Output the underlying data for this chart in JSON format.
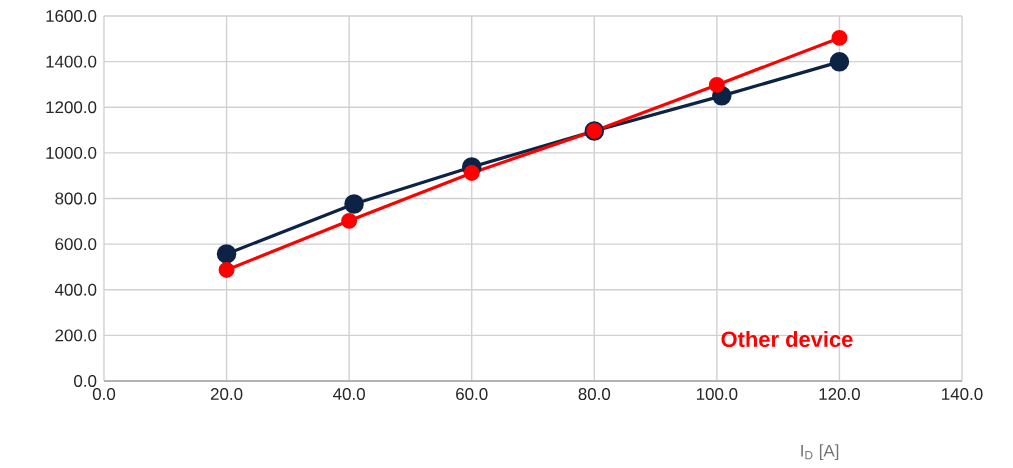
{
  "chart_data": {
    "type": "line",
    "xlabel": "I$_{D}$ [A]",
    "series": [
      {
        "color": "#0d2345",
        "x": [
          20,
          40.8,
          60,
          80,
          100.8,
          120
        ],
        "values": [
          557,
          776,
          938,
          1096,
          1250,
          1399
        ]
      },
      {
        "name": "Other device",
        "color": "#ff0000",
        "x": [
          20,
          40,
          60,
          80,
          100,
          120
        ],
        "values": [
          487,
          702,
          912,
          1096,
          1298,
          1504
        ]
      }
    ],
    "xlim": [
      0,
      140
    ],
    "ylim": [
      0,
      1600
    ],
    "xticks": [
      {
        "value": 0,
        "label": "0.0"
      },
      {
        "value": 20,
        "label": "20.0"
      },
      {
        "value": 40,
        "label": "40.0"
      },
      {
        "value": 60,
        "label": "60.0"
      },
      {
        "value": 80,
        "label": "80.0"
      },
      {
        "value": 100,
        "label": "100.0"
      },
      {
        "value": 120,
        "label": "120.0"
      },
      {
        "value": 140,
        "label": "140.0"
      }
    ],
    "yticks": [
      {
        "value": 0,
        "label": "0.0"
      },
      {
        "value": 200,
        "label": "200.0"
      },
      {
        "value": 400,
        "label": "400.0"
      },
      {
        "value": 600,
        "label": "600.0"
      },
      {
        "value": 800,
        "label": "800.0"
      },
      {
        "value": 1000,
        "label": "1000.0"
      },
      {
        "value": 1200,
        "label": "1200.0"
      },
      {
        "value": 1400,
        "label": "1400.0"
      },
      {
        "value": 1600,
        "label": "1600.0"
      }
    ],
    "grid": true,
    "legend": "bottom right",
    "marker": "circle",
    "line_style": "solid"
  }
}
